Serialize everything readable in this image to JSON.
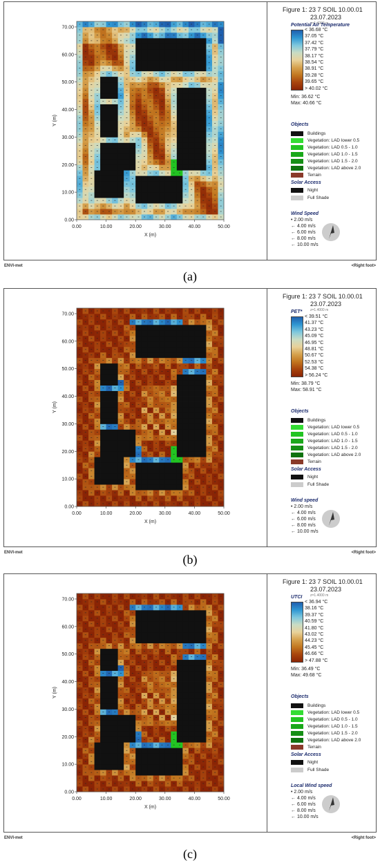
{
  "panels": [
    {
      "id": "a",
      "caption": "(a)",
      "figure_title": "Figure 1: 23 7 SOIL 10.00.01",
      "figure_date": "23.07.2023",
      "height_note": "z=1.4000 m",
      "variable": "Potential Air Temperature",
      "legend_ticks": [
        "< 36.68 °C",
        "37.05 °C",
        "37.42 °C",
        "37.79 °C",
        "38.17 °C",
        "38.54 °C",
        "38.91 °C",
        "39.28 °C",
        "39.65 °C",
        "> 40.02 °C"
      ],
      "min_text": "Min: 36.62 °C",
      "max_text": "Max: 40.66 °C",
      "wind_title": "Wind Speed",
      "footer_left": "ENVI-met",
      "footer_right": "<Right foot>"
    },
    {
      "id": "b",
      "caption": "(b)",
      "figure_title": "Figure 1: 23 7 SOIL 10.00.01",
      "figure_date": "23.07.2023",
      "height_note": "z=1.4000 m",
      "variable": "PET*",
      "legend_ticks": [
        "< 39.51 °C",
        "41.37 °C",
        "43.23 °C",
        "45.09 °C",
        "46.95 °C",
        "48.81 °C",
        "50.67 °C",
        "52.53 °C",
        "54.38 °C",
        "> 56.24 °C"
      ],
      "min_text": "Min: 38.79 °C",
      "max_text": "Max: 58.91 °C",
      "wind_title": "Wind speed",
      "footer_left": "ENVI-met",
      "footer_right": "<Right foot>"
    },
    {
      "id": "c",
      "caption": "(c)",
      "figure_title": "Figure 1: 23 7 SOIL 10.00.01",
      "figure_date": "23.07.2023",
      "height_note": "z=1.4000 m",
      "variable": "UTCI",
      "legend_ticks": [
        "< 36.94 °C",
        "38.16 °C",
        "39.37 °C",
        "40.59 °C",
        "41.80 °C",
        "43.02 °C",
        "44.23 °C",
        "45.45 °C",
        "46.66 °C",
        "> 47.88 °C"
      ],
      "min_text": "Min: 36.49 °C",
      "max_text": "Max: 49.68 °C",
      "wind_title": "Local Wind speed",
      "footer_left": "ENVI-met",
      "footer_right": "<Right foot>"
    }
  ],
  "objects_title": "Objects",
  "objects": [
    {
      "label": "Buildings",
      "color": "#111111"
    },
    {
      "label": "Vegetation: LAD lower 0.5",
      "color": "#33dd33"
    },
    {
      "label": "Vegetation:  LAD 0.5 - 1.0",
      "color": "#22c422"
    },
    {
      "label": "Vegetation:  LAD 1.0 - 1.5",
      "color": "#1aa81a"
    },
    {
      "label": "Vegetation:  LAD 1.5 - 2.0",
      "color": "#158f15"
    },
    {
      "label": "Vegetation:  LAD above 2.0",
      "color": "#0f720f"
    },
    {
      "label": "Terrain",
      "color": "#8a3a2a"
    }
  ],
  "solar_title": "Solar Access",
  "solar": [
    {
      "label": "Night",
      "color": "#111111"
    },
    {
      "label": "Full Shade",
      "color": "#cccccc"
    }
  ],
  "wind_speeds": [
    "2.00 m/s",
    "4.00 m/s",
    "6.00 m/s",
    "8.00 m/s",
    "10.00 m/s"
  ],
  "axes": {
    "xlabel": "X (m)",
    "ylabel": "Y (m)",
    "xticks": [
      "0.00",
      "10.00",
      "20.00",
      "30.00",
      "40.00",
      "50.00"
    ],
    "yticks": [
      "0.00",
      "10.00",
      "20.00",
      "30.00",
      "40.00",
      "50.00",
      "60.00",
      "70.00"
    ]
  },
  "colors": {
    "cold": "#1f6fb5",
    "mid": "#e8d29a",
    "hot": "#9a2a05"
  },
  "chart_data": [
    {
      "type": "heatmap",
      "title": "Potential Air Temperature",
      "xlabel": "X (m)",
      "ylabel": "Y (m)",
      "xlim": [
        0,
        50
      ],
      "ylim": [
        0,
        72
      ],
      "min": 36.62,
      "max": 40.66,
      "unit": "°C"
    },
    {
      "type": "heatmap",
      "title": "PET*",
      "xlabel": "X (m)",
      "ylabel": "Y (m)",
      "xlim": [
        0,
        50
      ],
      "ylim": [
        0,
        72
      ],
      "min": 38.79,
      "max": 58.91,
      "unit": "°C"
    },
    {
      "type": "heatmap",
      "title": "UTCI",
      "xlabel": "X (m)",
      "ylabel": "Y (m)",
      "xlim": [
        0,
        50
      ],
      "ylim": [
        0,
        72
      ],
      "min": 36.49,
      "max": 49.68,
      "unit": "°C"
    }
  ]
}
